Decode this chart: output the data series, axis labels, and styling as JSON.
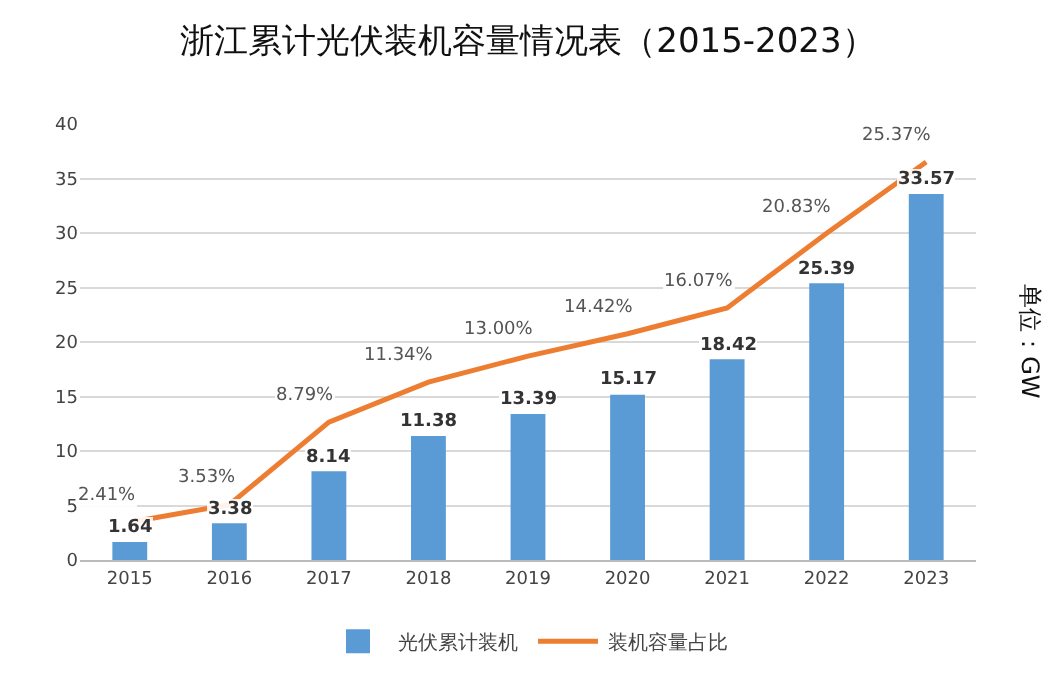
{
  "chart_data": {
    "type": "bar",
    "title": "浙江累计光伏装机容量情况表（2015-2023）",
    "ylabel": "单位：GW",
    "categories": [
      "2015",
      "2016",
      "2017",
      "2018",
      "2019",
      "2020",
      "2021",
      "2022",
      "2023"
    ],
    "series": [
      {
        "name": "光伏累计装机",
        "color": "#5b9bd5",
        "values": [
          1.64,
          3.38,
          8.14,
          11.38,
          13.39,
          15.17,
          18.42,
          25.39,
          33.57
        ],
        "data_labels": true
      },
      {
        "name": "装机容量占比",
        "type": "line",
        "axis": "y2",
        "color": "#ed7d31",
        "values": [
          2.41,
          3.53,
          8.79,
          11.34,
          13.0,
          14.42,
          16.07,
          20.83,
          25.37
        ],
        "value_labels": [
          "2.41%",
          "3.53%",
          "8.79%",
          "11.34%",
          "13.00%",
          "14.42%",
          "16.07%",
          "20.83%",
          "25.37%"
        ]
      }
    ],
    "ylim": [
      0,
      40
    ],
    "yticks": [
      0,
      5,
      10,
      15,
      20,
      25,
      30,
      35,
      40
    ],
    "tick_labels": "xy",
    "grid": "y",
    "legend": "bottom",
    "marker": "none",
    "line_style": "solid"
  }
}
